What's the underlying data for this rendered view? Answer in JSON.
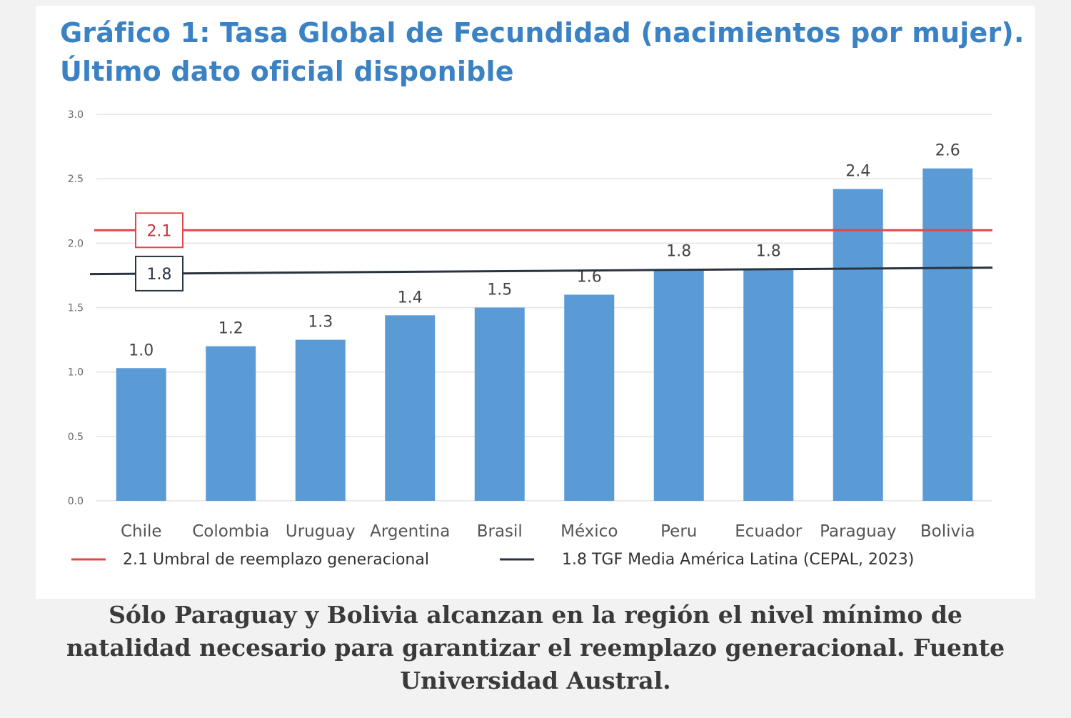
{
  "header": {
    "title_line1": "Gráfico 1: Tasa Global de Fecundidad (nacimientos por mujer).",
    "title_line2": "Último dato oficial disponible"
  },
  "caption": {
    "line1": "Sólo Paraguay y Bolivia alcanzan en la región el nivel mínimo de",
    "line2": "natalidad necesario para garantizar el reemplazo generacional. Fuente",
    "line3": "Universidad Austral."
  },
  "colors": {
    "bar": "#5b9bd5",
    "title": "#3b82c4",
    "threshold_line": "#e0474c",
    "average_line": "#2a3340",
    "grid": "#e3e3e3"
  },
  "chart_data": {
    "type": "bar",
    "categories": [
      "Chile",
      "Colombia",
      "Uruguay",
      "Argentina",
      "Brasil",
      "México",
      "Peru",
      "Ecuador",
      "Paraguay",
      "Bolivia"
    ],
    "values": [
      1.03,
      1.2,
      1.25,
      1.44,
      1.5,
      1.6,
      1.8,
      1.8,
      2.42,
      2.58
    ],
    "data_labels": [
      "1.0",
      "1.2",
      "1.3",
      "1.4",
      "1.5",
      "1.6",
      "1.8",
      "1.8",
      "2.4",
      "2.6"
    ],
    "ylim": [
      0,
      3.0
    ],
    "yticks": [
      "0.0",
      "0.5",
      "1.0",
      "1.5",
      "2.0",
      "2.5",
      "3.0"
    ],
    "grid": true,
    "legend_position": "bottom",
    "reference_lines": [
      {
        "name": "2.1 Umbral de reemplazo generacional",
        "label": "2.1",
        "value_start": 2.1,
        "value_end": 2.1,
        "color": "#e0474c"
      },
      {
        "name": "1.8  TGF Media América Latina (CEPAL, 2023)",
        "label": "1.8",
        "value_start": 1.76,
        "value_end": 1.81,
        "color": "#2a3340"
      }
    ]
  }
}
